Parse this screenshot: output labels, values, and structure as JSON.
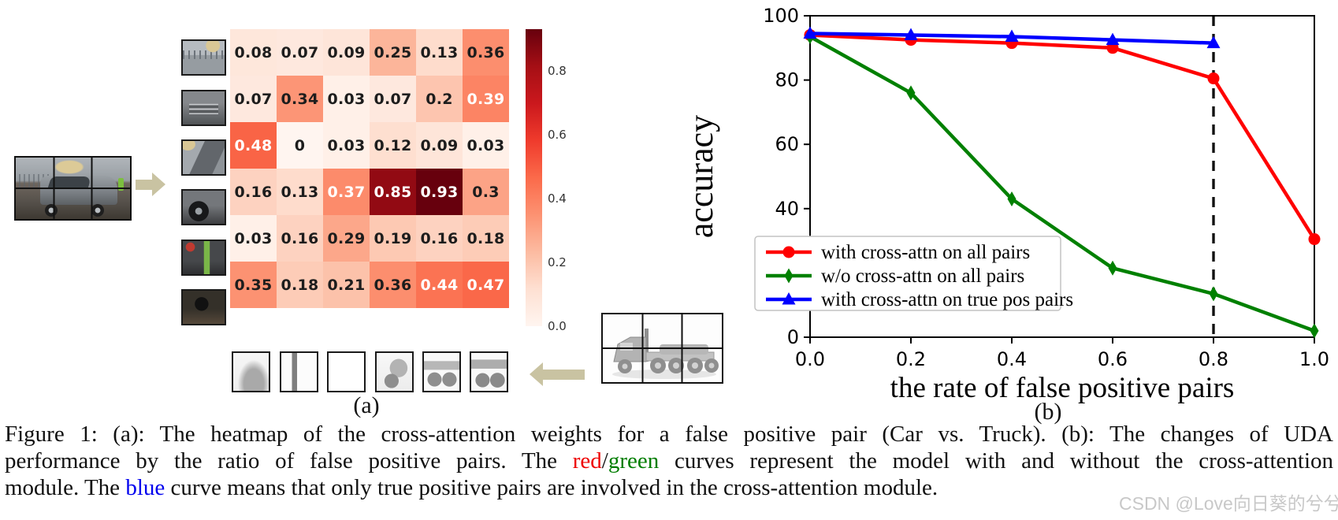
{
  "panel_a": {
    "label": "(a)",
    "colorbar": {
      "vmax": 0.93,
      "ticks": [
        0.8,
        0.6,
        0.4,
        0.2,
        0.0
      ]
    },
    "annotation_white_text_threshold": 0.37
  },
  "panel_b": {
    "label": "(b)"
  },
  "chart_data": [
    {
      "type": "heatmap",
      "rows": 6,
      "cols": 6,
      "values": [
        [
          0.08,
          0.07,
          0.09,
          0.25,
          0.13,
          0.36
        ],
        [
          0.07,
          0.34,
          0.03,
          0.07,
          0.2,
          0.39
        ],
        [
          0.48,
          0.0,
          0.03,
          0.12,
          0.09,
          0.03
        ],
        [
          0.16,
          0.13,
          0.37,
          0.85,
          0.93,
          0.3
        ],
        [
          0.03,
          0.16,
          0.29,
          0.19,
          0.16,
          0.18
        ],
        [
          0.35,
          0.18,
          0.21,
          0.36,
          0.44,
          0.47
        ]
      ],
      "vmin": 0,
      "vmax": 0.93,
      "colormap": "Reds",
      "colorbar_ticks": [
        0.8,
        0.6,
        0.4,
        0.2,
        0.0
      ]
    },
    {
      "type": "line",
      "x": [
        0.0,
        0.2,
        0.4,
        0.6,
        0.8,
        1.0
      ],
      "series": [
        {
          "name": "with cross-attn on all pairs",
          "color": "#ff0000",
          "marker": "circle",
          "values": [
            94,
            92.5,
            91.5,
            90,
            80.5,
            30.5
          ]
        },
        {
          "name": "w/o cross-attn on all pairs",
          "color": "#008000",
          "marker": "diamond",
          "values": [
            93.5,
            76,
            43,
            21.5,
            13.5,
            2
          ]
        },
        {
          "name": "with cross-attn on true pos pairs",
          "color": "#0000ff",
          "marker": "triangle",
          "values": [
            94.5,
            94,
            93.5,
            92.5,
            91.5
          ]
        }
      ],
      "xlabel": "the rate of false positive pairs",
      "ylabel": "accuracy",
      "xlim": [
        0,
        1
      ],
      "ylim": [
        0,
        100
      ],
      "xticks": [
        "0.0",
        "0.2",
        "0.4",
        "0.6",
        "0.8",
        "1.0"
      ],
      "yticks": [
        0,
        20,
        40,
        60,
        80,
        100
      ],
      "vline": {
        "x": 0.8,
        "style": "dashed",
        "color": "#111111"
      },
      "legend_position": "lower left",
      "grid": false
    }
  ],
  "caption": {
    "lines": [
      [
        {
          "text": "Figure 1: (a): The heatmap of the cross-attention weights for a false positive pair (Car vs. Truck). (b): The changes of UDA"
        }
      ],
      [
        {
          "text": "performance by the ratio of false positive pairs. The "
        },
        {
          "text": "red",
          "color": "#ee0000"
        },
        {
          "text": "/"
        },
        {
          "text": "green",
          "color": "#007d00"
        },
        {
          "text": " curves represent the model with and without the cross-attention"
        }
      ],
      [
        {
          "text": "module. The "
        },
        {
          "text": "blue",
          "color": "#0000ee"
        },
        {
          "text": " curve means that only true positive pairs are involved in the cross-attention module."
        }
      ]
    ],
    "watermark": "CSDN @Love向日葵的兮兮子"
  }
}
